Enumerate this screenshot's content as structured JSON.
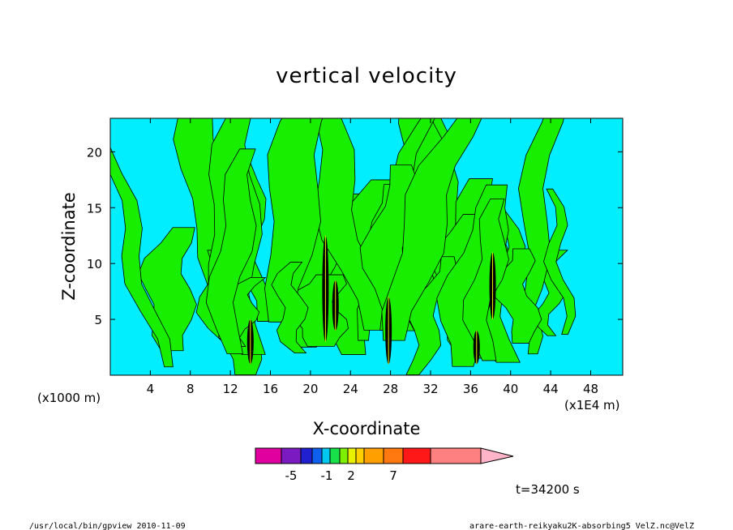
{
  "chart_data": {
    "type": "heatmap",
    "title": "vertical velocity",
    "xlabel": "X-coordinate",
    "ylabel": "Z-coordinate",
    "x_unit_left": "(x1000 m)",
    "x_unit_right": "(x1E4 m)",
    "xlim": [
      0,
      51.2
    ],
    "ylim": [
      0,
      23
    ],
    "x_ticks": [
      4,
      8,
      12,
      16,
      20,
      24,
      28,
      32,
      36,
      40,
      44,
      48
    ],
    "y_ticks": [
      5,
      10,
      15,
      20
    ],
    "time_label": "t=34200 s",
    "colorbar": {
      "colors": [
        "#e000a0",
        "#7a1ac0",
        "#2020d0",
        "#1060f0",
        "#00c8f0",
        "#18e048",
        "#7cf000",
        "#e8f000",
        "#ffd000",
        "#ffa000",
        "#ff7810",
        "#ff1818",
        "#ff8080"
      ],
      "labels": [
        "-5",
        "-1",
        "2",
        "7"
      ],
      "extend_color": "#ffb4c8"
    },
    "field_colors": {
      "negative": "#00eeff",
      "positive": "#18ee00",
      "strong": "#000000"
    }
  },
  "footer": {
    "left": "/usr/local/bin/gpview  2010-11-09",
    "right": "arare-earth-reikyaku2K-absorbing5_VelZ.nc@VelZ"
  }
}
